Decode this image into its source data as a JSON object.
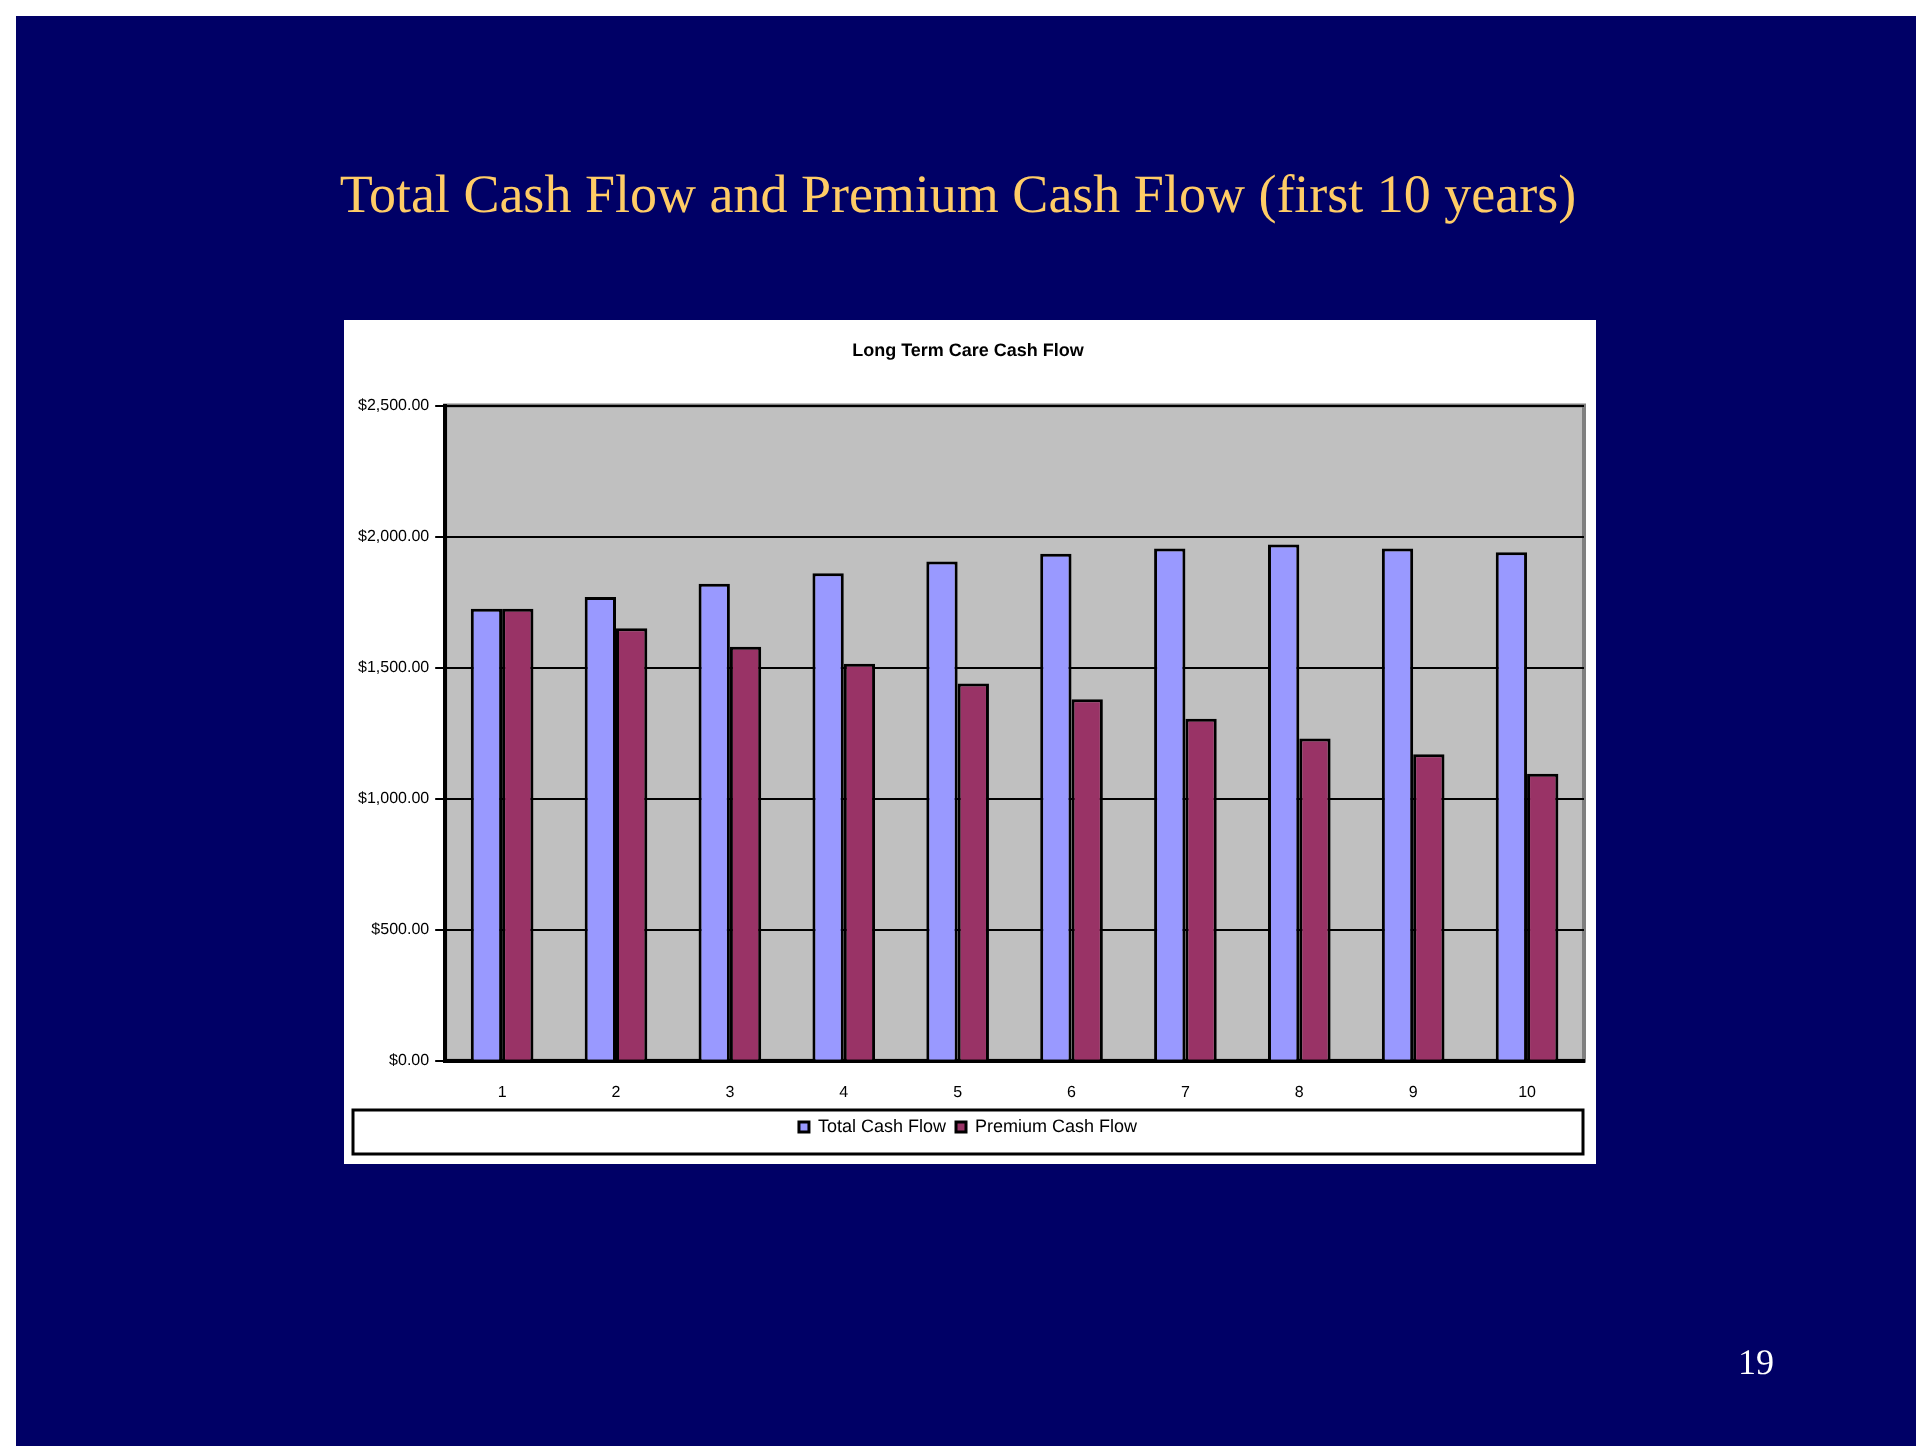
{
  "chart_data": {
    "type": "bar",
    "title": "Total Cash Flow and Premium Cash Flow (first 10 years)",
    "subtitle": "Long Term Care Cash Flow",
    "categories": [
      "1",
      "2",
      "3",
      "4",
      "5",
      "6",
      "7",
      "8",
      "9",
      "10"
    ],
    "series": [
      {
        "name": "Total Cash Flow",
        "color": "#9999ff",
        "values": [
          1725,
          1770,
          1820,
          1860,
          1905,
          1935,
          1955,
          1970,
          1955,
          1940
        ]
      },
      {
        "name": "Premium Cash Flow",
        "color": "#993366",
        "values": [
          1725,
          1650,
          1580,
          1515,
          1440,
          1380,
          1305,
          1230,
          1170,
          1095
        ]
      }
    ],
    "ylim": [
      0,
      2500
    ],
    "yticks": [
      {
        "value": 0,
        "label": "$0.00"
      },
      {
        "value": 500,
        "label": "$500.00"
      },
      {
        "value": 1000,
        "label": "$1,000.00"
      },
      {
        "value": 1500,
        "label": "$1,500.00"
      },
      {
        "value": 2000,
        "label": "$2,000.00"
      },
      {
        "value": 2500,
        "label": "$2,500.00"
      }
    ],
    "grid": "y",
    "legend": "bottom",
    "annotations": [
      "19"
    ]
  }
}
